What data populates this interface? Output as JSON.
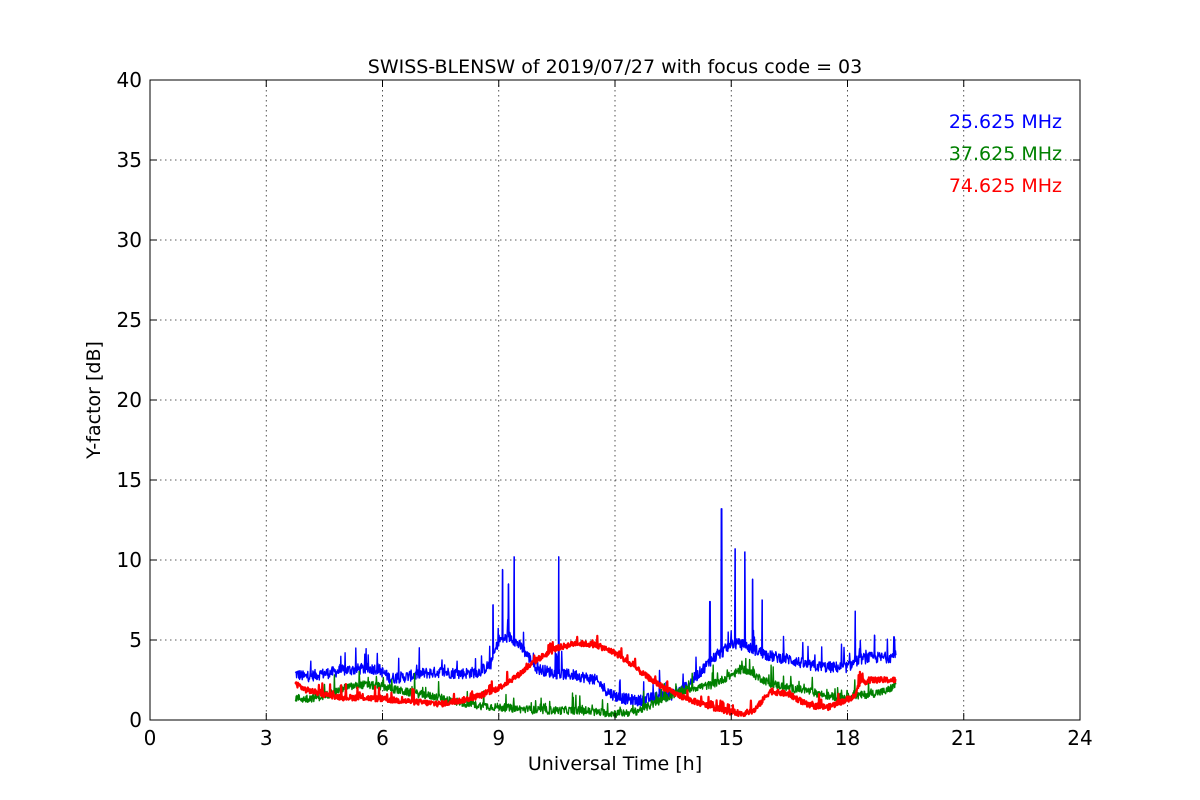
{
  "chart_data": {
    "type": "line",
    "title": "SWISS-BLENSW of 2019/07/27 with focus code = 03",
    "xlabel": "Universal Time [h]",
    "ylabel": "Y-factor [dB]",
    "xlim": [
      0,
      24
    ],
    "ylim": [
      0,
      40
    ],
    "xticks": [
      0,
      3,
      6,
      9,
      12,
      15,
      18,
      21,
      24
    ],
    "yticks": [
      0,
      5,
      10,
      15,
      20,
      25,
      30,
      35,
      40
    ],
    "grid": true,
    "legend_position": "top-right",
    "series": [
      {
        "name": "25.625 MHz",
        "color": "#0000ff",
        "noise": 0.35,
        "x": [
          3.75,
          4.0,
          4.5,
          5.0,
          5.5,
          5.9,
          6.2,
          6.6,
          7.0,
          7.5,
          8.0,
          8.5,
          8.8,
          9.0,
          9.3,
          9.6,
          10.0,
          10.5,
          11.0,
          11.5,
          11.8,
          12.0,
          12.3,
          12.6,
          13.0,
          13.5,
          13.8,
          14.2,
          14.5,
          14.8,
          15.0,
          15.3,
          15.6,
          16.0,
          16.5,
          17.0,
          17.5,
          18.0,
          18.3,
          18.6,
          19.0,
          19.25
        ],
        "y": [
          2.9,
          2.7,
          2.9,
          3.1,
          3.2,
          3.2,
          2.6,
          2.7,
          2.9,
          3.0,
          2.9,
          3.0,
          3.5,
          5.0,
          5.2,
          4.5,
          3.2,
          2.9,
          2.8,
          2.5,
          1.8,
          1.5,
          1.3,
          1.2,
          1.4,
          1.6,
          2.0,
          3.0,
          3.8,
          4.3,
          4.8,
          4.7,
          4.4,
          4.0,
          3.8,
          3.4,
          3.3,
          3.3,
          3.8,
          3.9,
          3.9,
          4.0
        ],
        "spikes": [
          {
            "x": 9.1,
            "y": 9.4
          },
          {
            "x": 9.25,
            "y": 8.5
          },
          {
            "x": 9.4,
            "y": 10.2
          },
          {
            "x": 8.85,
            "y": 7.2
          },
          {
            "x": 10.55,
            "y": 10.2
          },
          {
            "x": 14.45,
            "y": 7.4
          },
          {
            "x": 14.75,
            "y": 13.2
          },
          {
            "x": 15.1,
            "y": 10.7
          },
          {
            "x": 15.35,
            "y": 10.5
          },
          {
            "x": 15.55,
            "y": 8.8
          },
          {
            "x": 15.8,
            "y": 7.5
          },
          {
            "x": 18.2,
            "y": 6.8
          },
          {
            "x": 18.7,
            "y": 5.3
          },
          {
            "x": 19.2,
            "y": 5.2
          }
        ]
      },
      {
        "name": "37.625 MHz",
        "color": "#008000",
        "noise": 0.25,
        "x": [
          3.75,
          4.0,
          4.5,
          5.0,
          5.5,
          6.0,
          6.5,
          7.0,
          7.5,
          8.0,
          8.5,
          9.0,
          9.5,
          10.0,
          10.5,
          11.0,
          11.5,
          12.0,
          12.5,
          13.0,
          13.5,
          14.0,
          14.5,
          15.0,
          15.3,
          15.6,
          16.0,
          16.5,
          17.0,
          17.5,
          18.0,
          18.2,
          18.5,
          19.0,
          19.25
        ],
        "y": [
          1.4,
          1.3,
          1.5,
          2.0,
          2.2,
          2.1,
          1.8,
          1.6,
          1.4,
          1.1,
          0.9,
          0.8,
          0.7,
          0.6,
          0.6,
          0.6,
          0.5,
          0.4,
          0.5,
          1.0,
          1.6,
          2.0,
          2.2,
          2.8,
          3.2,
          2.8,
          2.3,
          2.0,
          1.8,
          1.5,
          1.4,
          1.5,
          1.6,
          1.8,
          2.2
        ]
      },
      {
        "name": "74.625 MHz",
        "color": "#ff0000",
        "noise": 0.18,
        "x": [
          3.75,
          4.0,
          4.5,
          5.0,
          5.5,
          6.0,
          6.5,
          7.0,
          7.5,
          8.0,
          8.5,
          9.0,
          9.5,
          10.0,
          10.5,
          11.0,
          11.5,
          12.0,
          12.5,
          13.0,
          13.5,
          14.0,
          14.5,
          15.0,
          15.3,
          15.6,
          16.0,
          16.5,
          17.0,
          17.5,
          18.0,
          18.2,
          18.3,
          18.6,
          19.0,
          19.25
        ],
        "y": [
          2.3,
          1.9,
          1.6,
          1.4,
          1.4,
          1.3,
          1.2,
          1.1,
          1.0,
          1.2,
          1.5,
          2.0,
          2.8,
          3.8,
          4.5,
          4.8,
          4.7,
          4.2,
          3.3,
          2.4,
          1.7,
          1.2,
          0.8,
          0.5,
          0.4,
          0.6,
          1.8,
          1.6,
          0.9,
          0.8,
          1.3,
          1.5,
          2.3,
          2.5,
          2.5,
          2.5
        ]
      }
    ]
  }
}
